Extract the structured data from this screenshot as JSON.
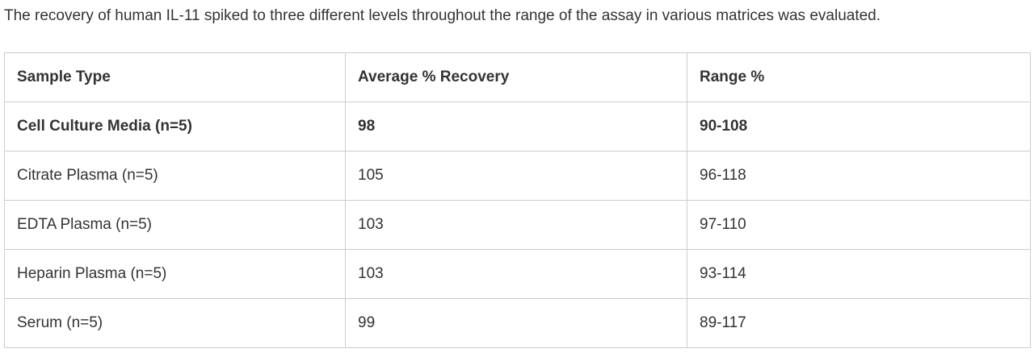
{
  "intro": "The recovery of human IL-11 spiked to three different levels throughout the range of the assay in various matrices was evaluated.",
  "table": {
    "header": [
      "Sample Type",
      "Average % Recovery",
      "Range %"
    ],
    "rows": [
      [
        "Cell Culture Media (n=5)",
        "98",
        "90-108"
      ],
      [
        "Citrate Plasma (n=5)",
        "105",
        "96-118"
      ],
      [
        "EDTA Plasma (n=5)",
        "103",
        "97-110"
      ],
      [
        "Heparin Plasma (n=5)",
        "103",
        "93-114"
      ],
      [
        "Serum (n=5)",
        "99",
        "89-117"
      ]
    ]
  }
}
